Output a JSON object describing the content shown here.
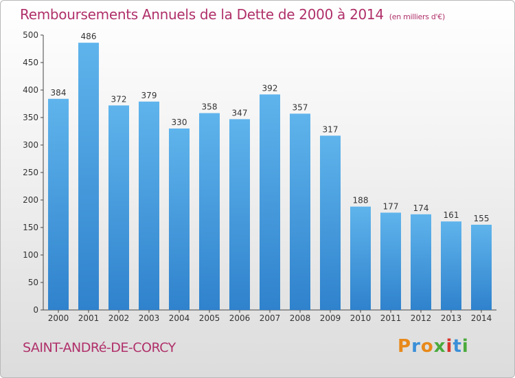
{
  "header": {
    "title": "Remboursements Annuels de la Dette de 2000 à 2014",
    "unit": "(en milliers d'€)"
  },
  "footer": {
    "town": "SAINT-ANDRé-DE-CORCY",
    "brand": "Proxiti"
  },
  "colors": {
    "title": "#b0306a",
    "bar_top": "#5fb4ec",
    "bar_bottom": "#2f82cc",
    "brand_letters": [
      "#e8891a",
      "#3a8fd8",
      "#e8891a",
      "#4aaa3c",
      "#d8342c",
      "#3a8fd8",
      "#4aaa3c"
    ]
  },
  "chart_data": {
    "type": "bar",
    "categories": [
      "2000",
      "2001",
      "2002",
      "2003",
      "2004",
      "2005",
      "2006",
      "2007",
      "2008",
      "2009",
      "2010",
      "2011",
      "2012",
      "2013",
      "2014"
    ],
    "values": [
      384,
      486,
      372,
      379,
      330,
      358,
      347,
      392,
      357,
      317,
      188,
      177,
      174,
      161,
      155
    ],
    "ylim": [
      0,
      500
    ],
    "yticks": [
      0,
      50,
      100,
      150,
      200,
      250,
      300,
      350,
      400,
      450,
      500
    ],
    "grid": false,
    "data_labels": true
  }
}
